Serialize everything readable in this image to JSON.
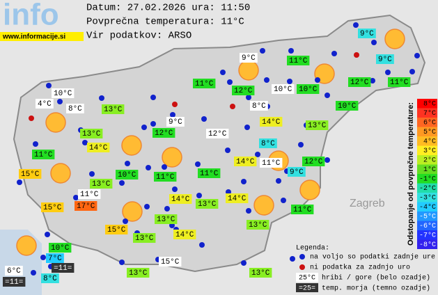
{
  "header": {
    "logo": "info",
    "site": "www.informacije.si",
    "date": "Datum: 27.02.2026 ura: 11:50",
    "average": "Povprečna temperatura: 11°C",
    "source": "Vir podatkov: ARSO"
  },
  "map": {
    "city": "Zagreb",
    "stations": [
      {
        "text": "9°C",
        "bg": "#33e0e0"
      },
      {
        "text": "9°C",
        "bg": "#33e0e0"
      },
      {
        "text": "9°C",
        "bg": "#ffffff"
      },
      {
        "text": "11°C",
        "bg": "#22dd22"
      },
      {
        "text": "11°C",
        "bg": "#22dd22"
      },
      {
        "text": "12°C",
        "bg": "#22dd22"
      },
      {
        "text": "10°C",
        "bg": "#ffffff"
      },
      {
        "text": "10°C",
        "bg": "#22dd22"
      },
      {
        "text": "12°C",
        "bg": "#22dd22"
      },
      {
        "text": "11°C",
        "bg": "#22dd22"
      },
      {
        "text": "10°C",
        "bg": "#ffffff"
      },
      {
        "text": "4°C",
        "bg": "#ffffff"
      },
      {
        "text": "8°C",
        "bg": "#ffffff"
      },
      {
        "text": "13°C",
        "bg": "#88ee22"
      },
      {
        "text": "8°C",
        "bg": "#ffffff"
      },
      {
        "text": "10°C",
        "bg": "#22dd22"
      },
      {
        "text": "9°C",
        "bg": "#ffffff"
      },
      {
        "text": "14°C",
        "bg": "#eeee22"
      },
      {
        "text": "13°C",
        "bg": "#88ee22"
      },
      {
        "text": "13°C",
        "bg": "#88ee22"
      },
      {
        "text": "12°C",
        "bg": "#22dd22"
      },
      {
        "text": "12°C",
        "bg": "#ffffff"
      },
      {
        "text": "14°C",
        "bg": "#eeee22"
      },
      {
        "text": "8°C",
        "bg": "#33e0e0"
      },
      {
        "text": "11°C",
        "bg": "#22dd22"
      },
      {
        "text": "14°C",
        "bg": "#eeee22"
      },
      {
        "text": "11°C",
        "bg": "#ffffff"
      },
      {
        "text": "12°C",
        "bg": "#22dd22"
      },
      {
        "text": "9°C",
        "bg": "#33e0e0"
      },
      {
        "text": "15°C",
        "bg": "#ffcc11"
      },
      {
        "text": "10°C",
        "bg": "#22dd22"
      },
      {
        "text": "11°C",
        "bg": "#22dd22"
      },
      {
        "text": "11°C",
        "bg": "#22dd22"
      },
      {
        "text": "13°C",
        "bg": "#88ee22"
      },
      {
        "text": "11°C",
        "bg": "#ffffff"
      },
      {
        "text": "14°C",
        "bg": "#eeee22"
      },
      {
        "text": "13°C",
        "bg": "#88ee22"
      },
      {
        "text": "14°C",
        "bg": "#eeee22"
      },
      {
        "text": "15°C",
        "bg": "#ffcc11"
      },
      {
        "text": "17°C",
        "bg": "#ff6611"
      },
      {
        "text": "11°C",
        "bg": "#22dd22"
      },
      {
        "text": "13°C",
        "bg": "#88ee22"
      },
      {
        "text": "13°C",
        "bg": "#88ee22"
      },
      {
        "text": "15°C",
        "bg": "#ffcc11"
      },
      {
        "text": "13°C",
        "bg": "#88ee22"
      },
      {
        "text": "14°C",
        "bg": "#eeee22"
      },
      {
        "text": "10°C",
        "bg": "#22dd22"
      },
      {
        "text": "7°C",
        "bg": "#22ccff"
      },
      {
        "text": "=11=",
        "bg": "#333333"
      },
      {
        "text": "15°C",
        "bg": "#ffffff"
      },
      {
        "text": "6°C",
        "bg": "#ffffff"
      },
      {
        "text": "13°C",
        "bg": "#88ee22"
      },
      {
        "text": "13°C",
        "bg": "#88ee22"
      },
      {
        "text": "8°C",
        "bg": "#33e0e0"
      },
      {
        "text": "=11=",
        "bg": "#333333"
      }
    ]
  },
  "scale": {
    "title": "Odstopanje od povprečne temperature:",
    "items": [
      {
        "text": "8°C",
        "color": "#ff0000"
      },
      {
        "text": "7°C",
        "color": "#ff3322"
      },
      {
        "text": "6°C",
        "color": "#ff6622"
      },
      {
        "text": "5°C",
        "color": "#ff9922"
      },
      {
        "text": "4°C",
        "color": "#ffbb22"
      },
      {
        "text": "3°C",
        "color": "#ffee22"
      },
      {
        "text": "2°C",
        "color": "#bbee22"
      },
      {
        "text": "1°C",
        "color": "#66dd22"
      },
      {
        "text": "-1°C",
        "color": "#22dd22"
      },
      {
        "text": "-2°C",
        "color": "#22ddaa"
      },
      {
        "text": "-3°C",
        "color": "#33e0e0"
      },
      {
        "text": "-4°C",
        "color": "#22ccff"
      },
      {
        "text": "-5°C",
        "color": "#2299ff"
      },
      {
        "text": "-6°C",
        "color": "#2266ff"
      },
      {
        "text": "-7°C",
        "color": "#2233ff"
      },
      {
        "text": "-8°C",
        "color": "#3322ee"
      }
    ]
  },
  "legend": {
    "title": "Legenda:",
    "available": "na voljo so podatki zadnje ure",
    "missing": "ni podatka za zadnjo uro",
    "mountain_sample": "25°C",
    "mountain": "hribi / gore (belo ozadje)",
    "sea_sample": "=25=",
    "sea": "temp. morja (temno ozadje)"
  }
}
